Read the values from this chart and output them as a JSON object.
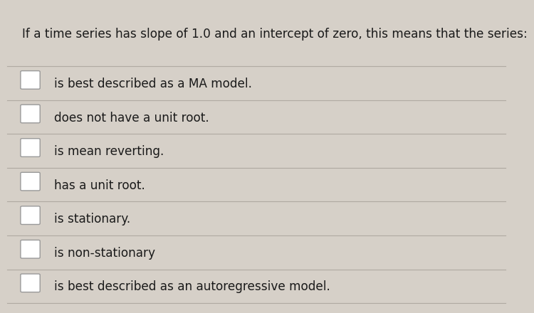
{
  "question": "If a time series has slope of 1.0 and an intercept of zero, this means that the series:",
  "options": [
    "is best described as a MA model.",
    "does not have a unit root.",
    "is mean reverting.",
    "has a unit root.",
    "is stationary.",
    "is non-stationary",
    "is best described as an autoregressive model."
  ],
  "bg_color": "#d6d0c8",
  "line_color": "#b0aaa2",
  "text_color": "#1a1a1a",
  "checkbox_color": "#ffffff",
  "checkbox_edge_color": "#999999",
  "question_fontsize": 12.2,
  "option_fontsize": 12.2,
  "fig_width": 7.0,
  "fig_height": 4.21
}
